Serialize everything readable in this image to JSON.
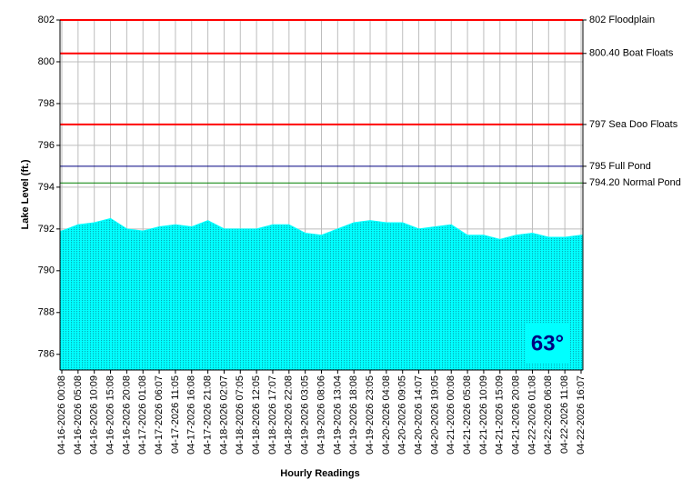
{
  "chart_data": {
    "type": "area",
    "ylabel": "Lake Level (ft.)",
    "xlabel": "Hourly Readings",
    "categories": [
      "04-16-2026 00:08",
      "04-16-2026 05:08",
      "04-16-2026 10:09",
      "04-16-2026 15:08",
      "04-16-2026 20:08",
      "04-17-2026 01:08",
      "04-17-2026 06:07",
      "04-17-2026 11:05",
      "04-17-2026 16:08",
      "04-17-2026 21:08",
      "04-18-2026 02:07",
      "04-18-2026 07:05",
      "04-18-2026 12:05",
      "04-18-2026 17:07",
      "04-18-2026 22:08",
      "04-19-2026 03:05",
      "04-19-2026 08:06",
      "04-19-2026 13:04",
      "04-19-2026 18:08",
      "04-19-2026 23:05",
      "04-20-2026 04:08",
      "04-20-2026 09:05",
      "04-20-2026 14:07",
      "04-20-2026 19:05",
      "04-21-2026 00:08",
      "04-21-2026 05:08",
      "04-21-2026 10:09",
      "04-21-2026 15:09",
      "04-21-2026 20:08",
      "04-22-2026 01:08",
      "04-22-2026 06:08",
      "04-22-2026 11:08",
      "04-22-2026 16:07"
    ],
    "values": [
      791.9,
      792.2,
      792.3,
      792.5,
      792.0,
      791.9,
      792.1,
      792.2,
      792.1,
      792.4,
      792.0,
      792.0,
      792.0,
      792.2,
      792.2,
      791.8,
      791.7,
      792.0,
      792.3,
      792.4,
      792.3,
      792.3,
      792.0,
      792.1,
      792.2,
      791.7,
      791.7,
      791.5,
      791.7,
      791.8,
      791.6,
      791.6,
      791.7
    ],
    "color": "#00ffff",
    "ylim": [
      785.25,
      802
    ],
    "yticks": [
      786,
      788,
      790,
      792,
      794,
      796,
      798,
      800,
      802
    ],
    "grid": true,
    "reference_lines": [
      {
        "value": 802,
        "label": "802 Floodplain",
        "color": "#ff0000"
      },
      {
        "value": 800.4,
        "label": "800.40 Boat Floats",
        "color": "#ff0000"
      },
      {
        "value": 797,
        "label": "797 Sea Doo Floats",
        "color": "#ff0000"
      },
      {
        "value": 795,
        "label": "795 Full Pond",
        "color": "#000080"
      },
      {
        "value": 794.2,
        "label": "794.20 Normal Pond",
        "color": "#008000"
      }
    ],
    "annotation": "63°"
  }
}
